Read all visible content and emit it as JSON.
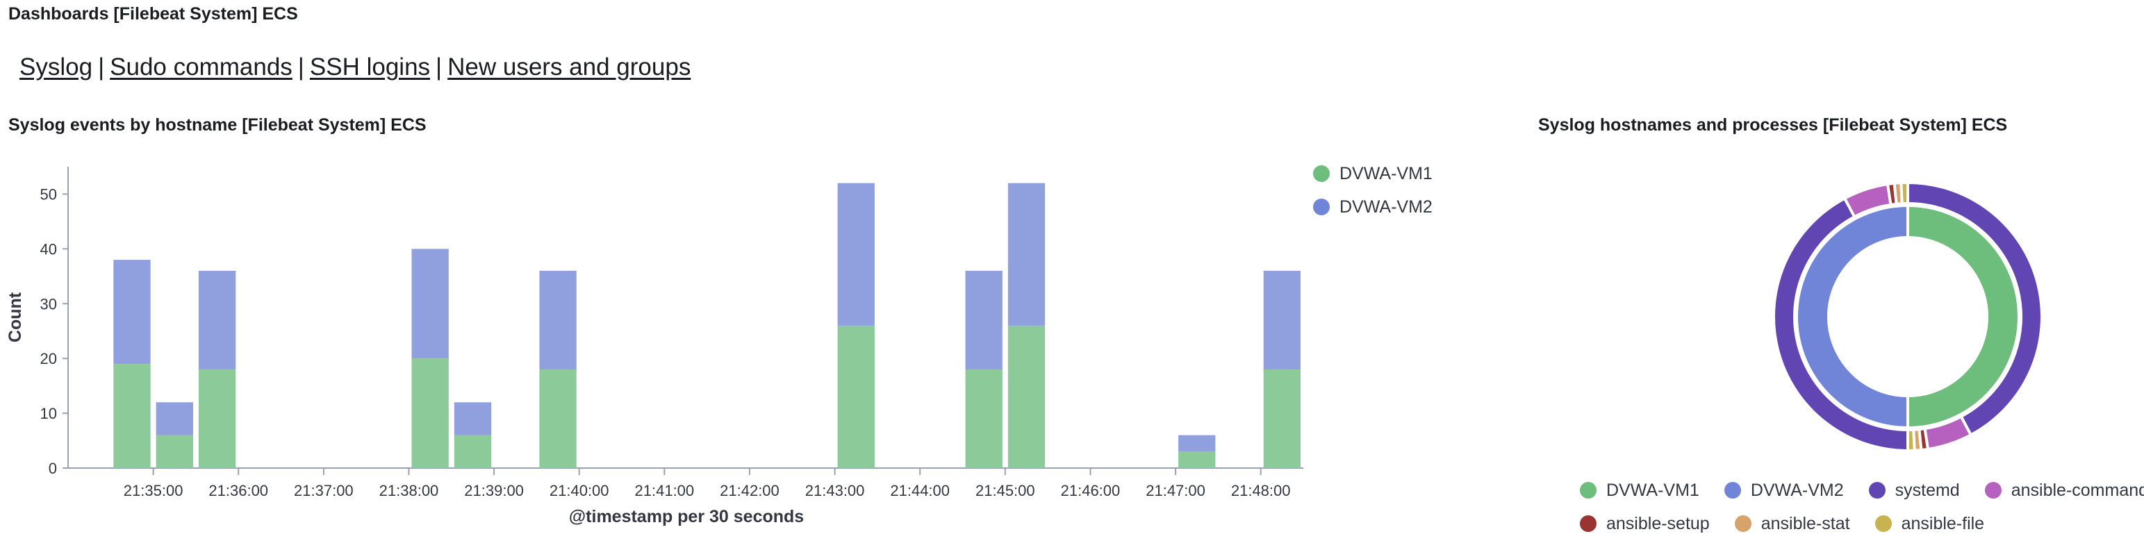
{
  "header": {
    "title": "Dashboards [Filebeat System] ECS"
  },
  "nav": {
    "links": [
      "Syslog",
      "Sudo commands",
      "SSH logins",
      "New users and groups"
    ],
    "separator": "|"
  },
  "bar_panel": {
    "title": "Syslog events by hostname [Filebeat System] ECS"
  },
  "donut_panel": {
    "title": "Syslog hostnames and processes [Filebeat System] ECS"
  },
  "colors": {
    "vm1": "#8dca9a",
    "vm2": "#909fde",
    "legend_vm1": "#6dbd7c",
    "legend_vm2": "#7085d8",
    "systemd": "#6045b3",
    "ansible_command": "#b660c0",
    "ansible_setup": "#9a3433",
    "ansible_stat": "#d6a36b",
    "ansible_file": "#c9b250",
    "axis": "#98a2b3",
    "text": "#343741"
  },
  "chart_data": [
    {
      "type": "bar",
      "stacked": true,
      "xlabel": "@timestamp per 30 seconds",
      "ylabel": "Count",
      "ylim": [
        0,
        55
      ],
      "yticks": [
        0,
        10,
        20,
        30,
        40,
        50
      ],
      "xticks": [
        "21:35:00",
        "21:36:00",
        "21:37:00",
        "21:38:00",
        "21:39:00",
        "21:40:00",
        "21:41:00",
        "21:42:00",
        "21:43:00",
        "21:44:00",
        "21:45:00",
        "21:46:00",
        "21:47:00",
        "21:48:00"
      ],
      "x": [
        "21:34:30",
        "21:35:00",
        "21:35:30",
        "21:38:00",
        "21:38:30",
        "21:39:30",
        "21:43:00",
        "21:44:30",
        "21:45:00",
        "21:47:00",
        "21:48:00"
      ],
      "series": [
        {
          "name": "DVWA-VM1",
          "values": [
            19,
            6,
            18,
            20,
            6,
            18,
            26,
            18,
            26,
            3,
            18
          ]
        },
        {
          "name": "DVWA-VM2",
          "values": [
            19,
            6,
            18,
            20,
            6,
            18,
            26,
            18,
            26,
            3,
            18
          ]
        }
      ],
      "legend": "right"
    },
    {
      "type": "pie",
      "donut": true,
      "inner": [
        {
          "name": "DVWA-VM1",
          "value": 50
        },
        {
          "name": "DVWA-VM2",
          "value": 50
        }
      ],
      "outer": [
        {
          "parent": "DVWA-VM1",
          "name": "systemd",
          "value": 42.2
        },
        {
          "parent": "DVWA-VM1",
          "name": "ansible-command",
          "value": 5.4
        },
        {
          "parent": "DVWA-VM1",
          "name": "ansible-setup",
          "value": 0.8
        },
        {
          "parent": "DVWA-VM1",
          "name": "ansible-stat",
          "value": 0.8
        },
        {
          "parent": "DVWA-VM1",
          "name": "ansible-file",
          "value": 0.8
        },
        {
          "parent": "DVWA-VM2",
          "name": "systemd",
          "value": 42.2
        },
        {
          "parent": "DVWA-VM2",
          "name": "ansible-command",
          "value": 5.4
        },
        {
          "parent": "DVWA-VM2",
          "name": "ansible-setup",
          "value": 0.8
        },
        {
          "parent": "DVWA-VM2",
          "name": "ansible-stat",
          "value": 0.8
        },
        {
          "parent": "DVWA-VM2",
          "name": "ansible-file",
          "value": 0.8
        }
      ],
      "legend": [
        "DVWA-VM1",
        "DVWA-VM2",
        "systemd",
        "ansible-command",
        "ansible-setup",
        "ansible-stat",
        "ansible-file"
      ],
      "legend_position": "bottom"
    }
  ]
}
